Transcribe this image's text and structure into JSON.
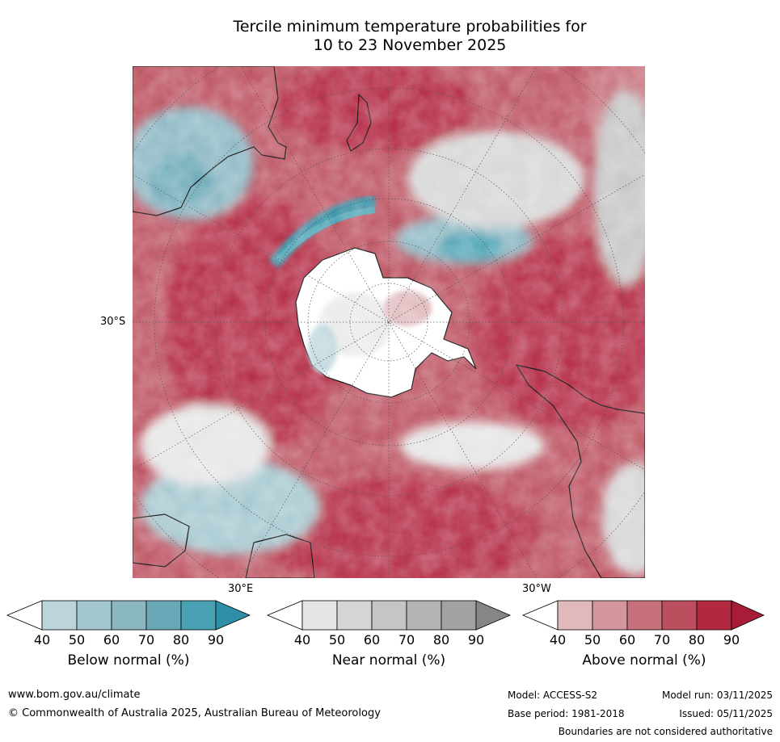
{
  "title_line1": "Tercile minimum temperature probabilities for",
  "title_line2": "10 to 23 November 2025",
  "map": {
    "projection": "south polar stereographic",
    "lat_label": "30°S",
    "lon_labels": [
      "30°E",
      "30°W"
    ],
    "colors": {
      "above": [
        "#e0b9bd",
        "#d4969d",
        "#c7717c",
        "#bb4f5d",
        "#b2283f",
        "#a71c37"
      ],
      "below": [
        "#bcd5dc",
        "#a4c7cf",
        "#8bb7c3",
        "#6aa8b7",
        "#47a1b2",
        "#2f8fa6"
      ],
      "near": [
        "#e5e5e5",
        "#d5d5d5",
        "#c5c5c5",
        "#b4b4b4",
        "#a2a2a2",
        "#868686"
      ],
      "land_outline": "#000000"
    }
  },
  "colorbars": [
    {
      "title": "Below normal (%)",
      "ticks": [
        "40",
        "50",
        "60",
        "70",
        "80",
        "90"
      ],
      "colors": [
        "#ffffff",
        "#bcd5dc",
        "#a4c7cf",
        "#8bb7c3",
        "#6aa8b7",
        "#47a1b2",
        "#2f8fa6"
      ]
    },
    {
      "title": "Near normal (%)",
      "ticks": [
        "40",
        "50",
        "60",
        "70",
        "80",
        "90"
      ],
      "colors": [
        "#ffffff",
        "#e5e5e5",
        "#d5d5d5",
        "#c5c5c5",
        "#b4b4b4",
        "#a2a2a2",
        "#868686"
      ]
    },
    {
      "title": "Above normal (%)",
      "ticks": [
        "40",
        "50",
        "60",
        "70",
        "80",
        "90"
      ],
      "colors": [
        "#ffffff",
        "#e0b9bd",
        "#d4969d",
        "#c7717c",
        "#bb4f5d",
        "#b2283f",
        "#a71c37"
      ]
    }
  ],
  "footer": {
    "url": "www.bom.gov.au/climate",
    "copyright": "© Commonwealth of Australia 2025, Australian Bureau of Meteorology",
    "model": "Model: ACCESS-S2",
    "base_period": "Base period: 1981-2018",
    "model_run": "Model run: 03/11/2025",
    "issued": "Issued: 05/11/2025",
    "disclaimer": "Boundaries are not considered authoritative"
  }
}
